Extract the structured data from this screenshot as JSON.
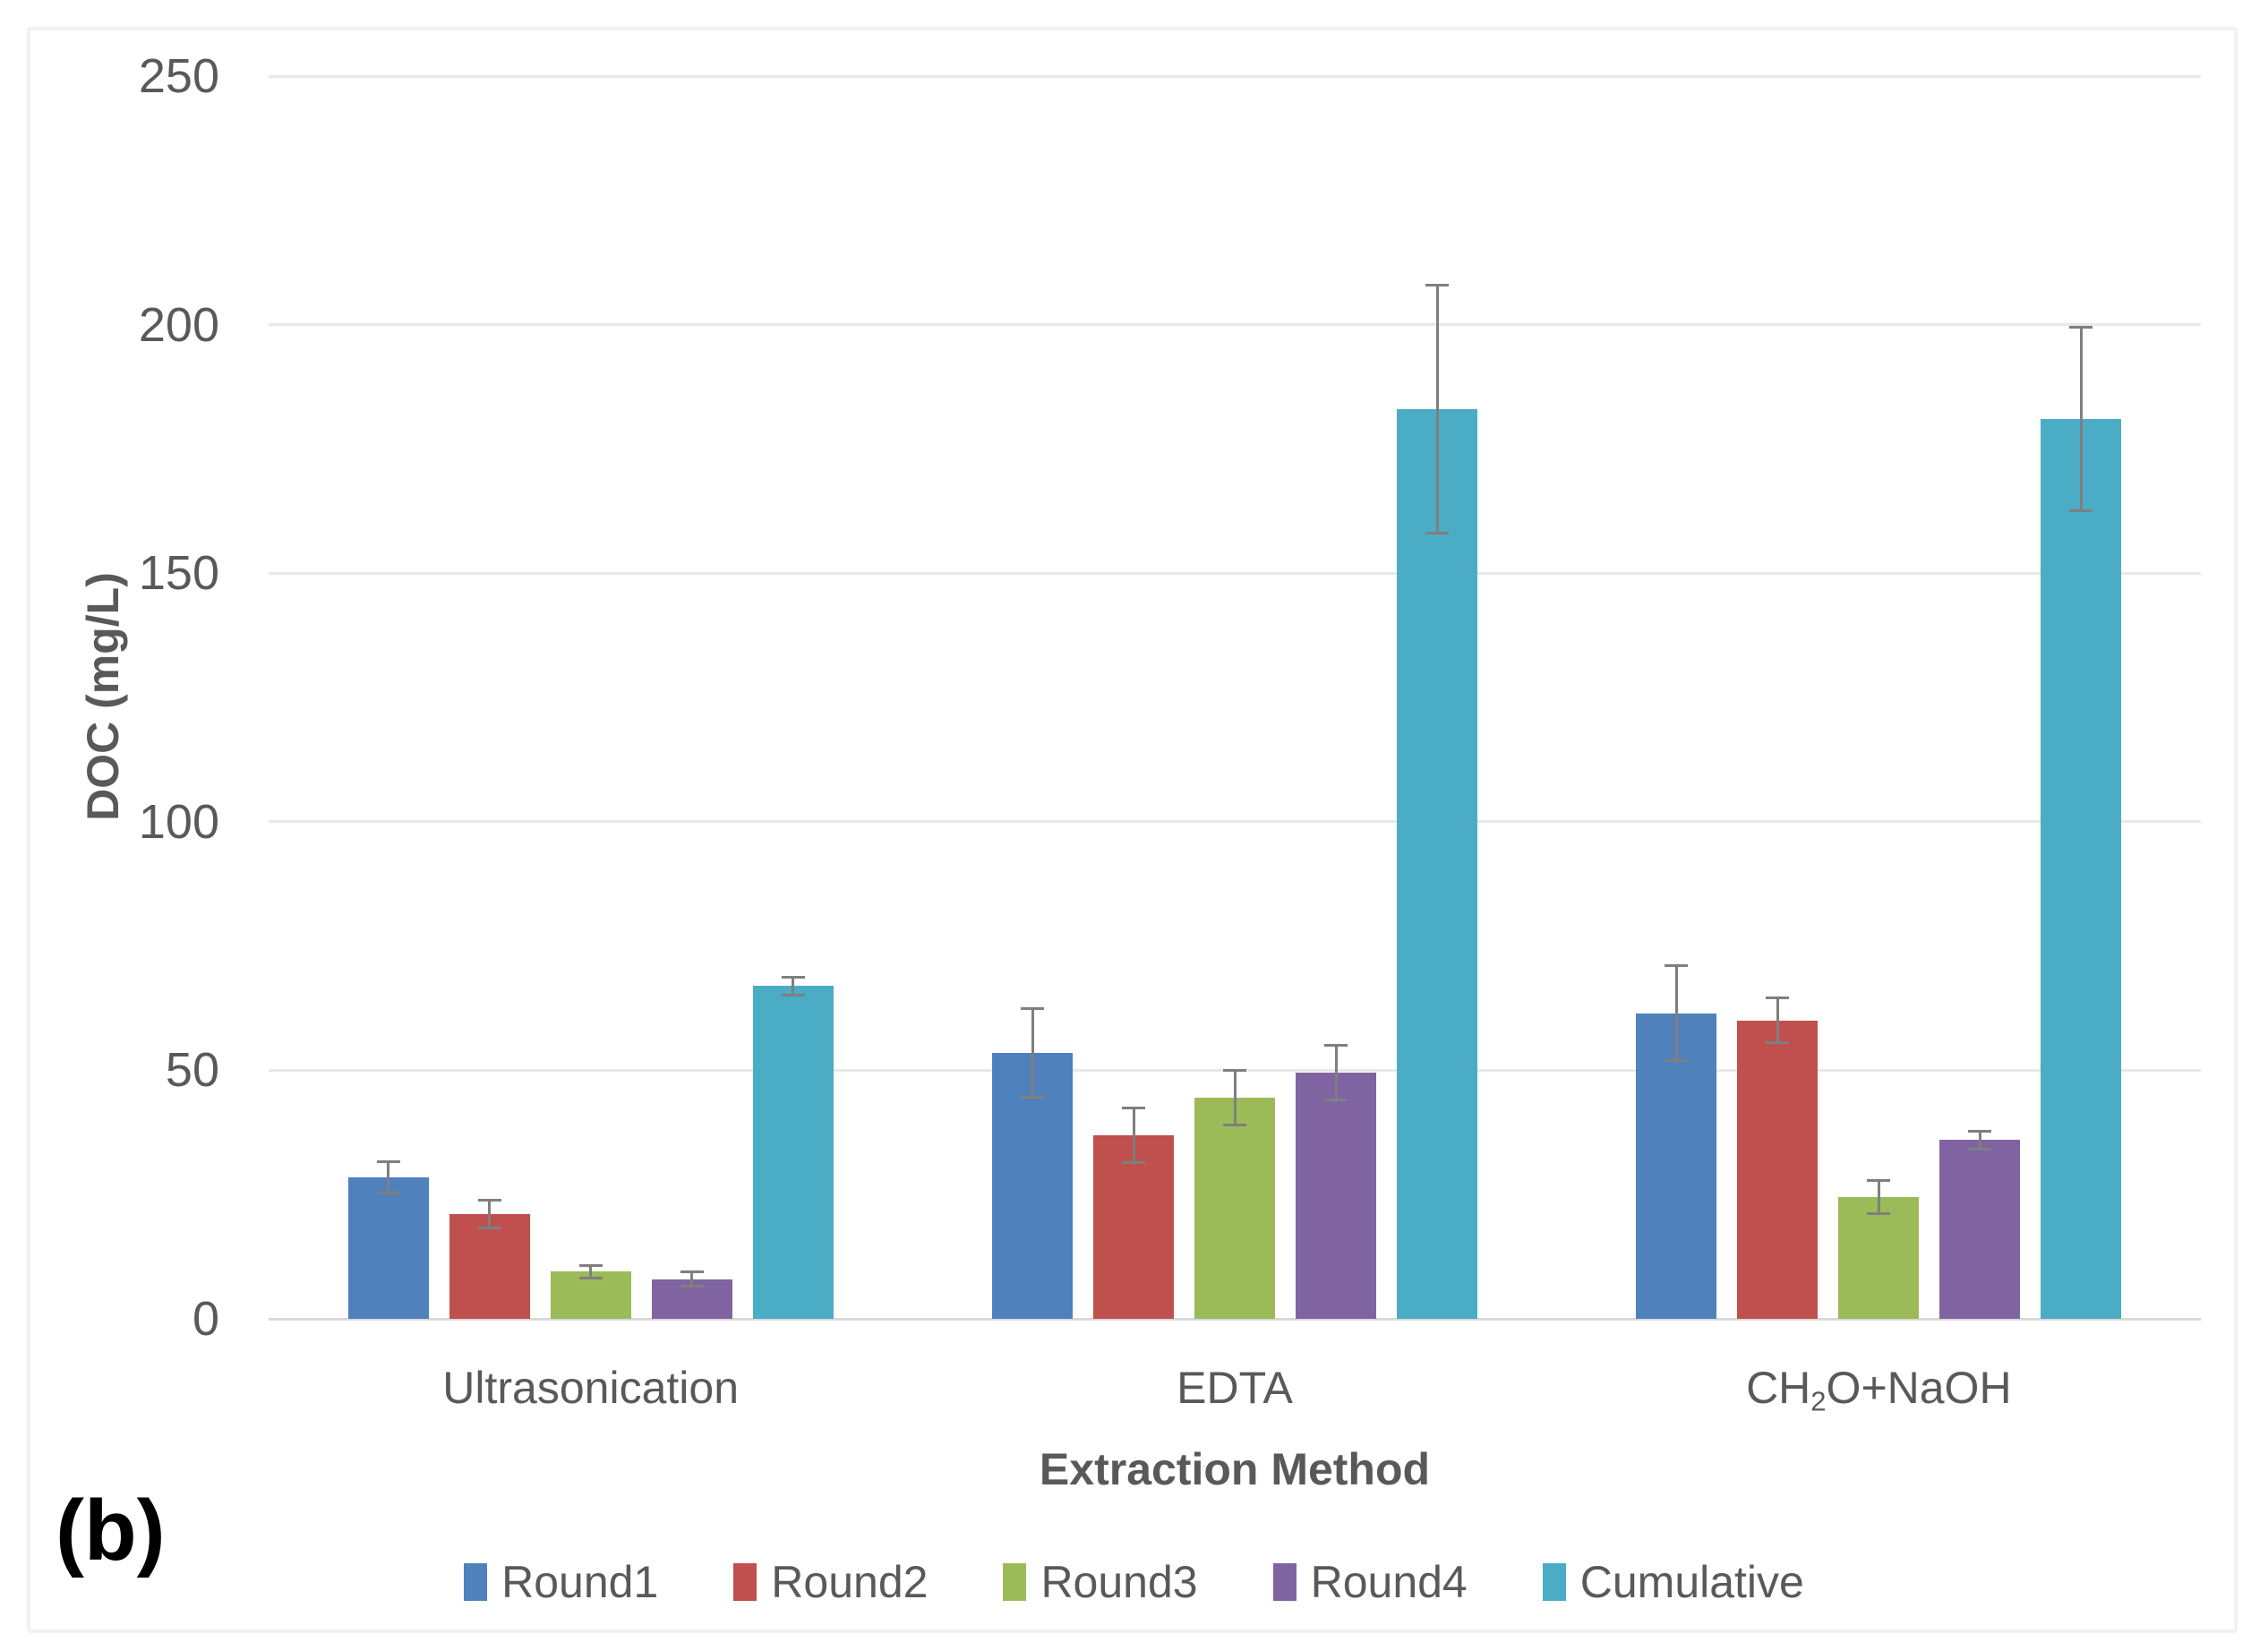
{
  "figure": {
    "panel_label": "(b)"
  },
  "chart_data": {
    "type": "bar",
    "title": "",
    "xlabel": "Extraction Method",
    "ylabel": "DOC (mg/L)",
    "ylim": [
      0,
      250
    ],
    "yticks": [
      0,
      50,
      100,
      150,
      200,
      250
    ],
    "grid": true,
    "legend_position": "bottom",
    "error_bars": true,
    "categories": [
      "Ultrasonication",
      "EDTA",
      "CH₂O+NaOH"
    ],
    "categories_rich": [
      {
        "segments": [
          {
            "text": "Ultrasonication"
          }
        ]
      },
      {
        "segments": [
          {
            "text": "EDTA"
          }
        ]
      },
      {
        "segments": [
          {
            "text": "CH"
          },
          {
            "text": "2",
            "subscript": true
          },
          {
            "text": "O+NaOH"
          }
        ]
      }
    ],
    "series": [
      {
        "name": "Round1",
        "color": "#4F81BD",
        "values": [
          28.5,
          53.5,
          61.5
        ],
        "errors": [
          3.2,
          9.0,
          9.5
        ]
      },
      {
        "name": "Round2",
        "color": "#C0504D",
        "values": [
          21.0,
          37.0,
          60.0
        ],
        "errors": [
          2.8,
          5.5,
          4.5
        ]
      },
      {
        "name": "Round3",
        "color": "#9BBB59",
        "values": [
          9.5,
          44.5,
          24.5
        ],
        "errors": [
          1.3,
          5.5,
          3.3
        ]
      },
      {
        "name": "Round4",
        "color": "#8064A2",
        "values": [
          8.0,
          49.5,
          36.0
        ],
        "errors": [
          1.5,
          5.5,
          1.8
        ]
      },
      {
        "name": "Cumulative",
        "color": "#4BACC6",
        "values": [
          67.0,
          183.0,
          181.0
        ],
        "errors": [
          1.8,
          25.0,
          18.5
        ]
      }
    ],
    "colors": {
      "text": "#595959",
      "gridline": "#e8e8e8",
      "axis_line": "#d9d9d9",
      "error_bar": "#7f7f7f"
    }
  }
}
